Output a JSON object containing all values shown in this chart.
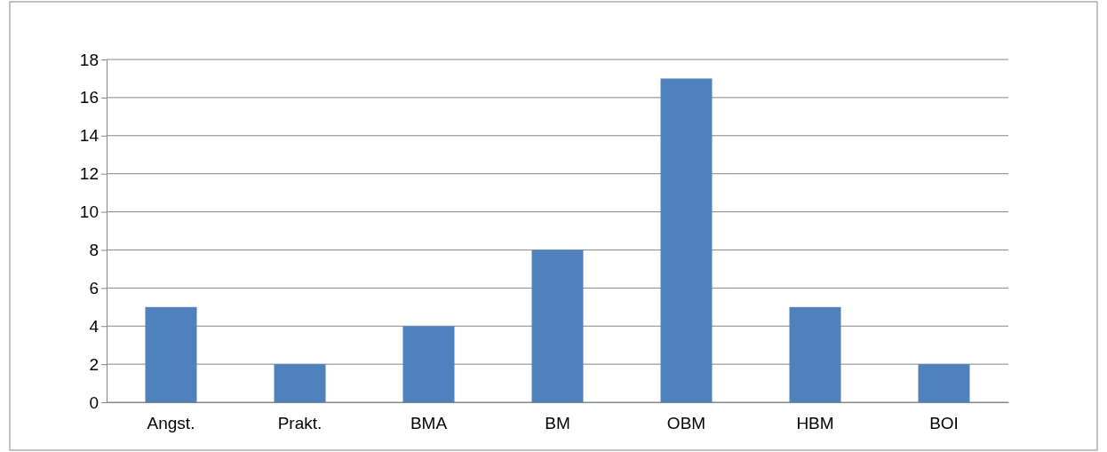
{
  "chart_data": {
    "type": "bar",
    "categories": [
      "Angst.",
      "Prakt.",
      "BMA",
      "BM",
      "OBM",
      "HBM",
      "BOI"
    ],
    "values": [
      5,
      2,
      4,
      8,
      17,
      5,
      2
    ],
    "color": "#4f81bd",
    "ylim": [
      0,
      18
    ],
    "yticks": [
      0,
      2,
      4,
      6,
      8,
      10,
      12,
      14,
      16,
      18
    ],
    "grid": true
  }
}
